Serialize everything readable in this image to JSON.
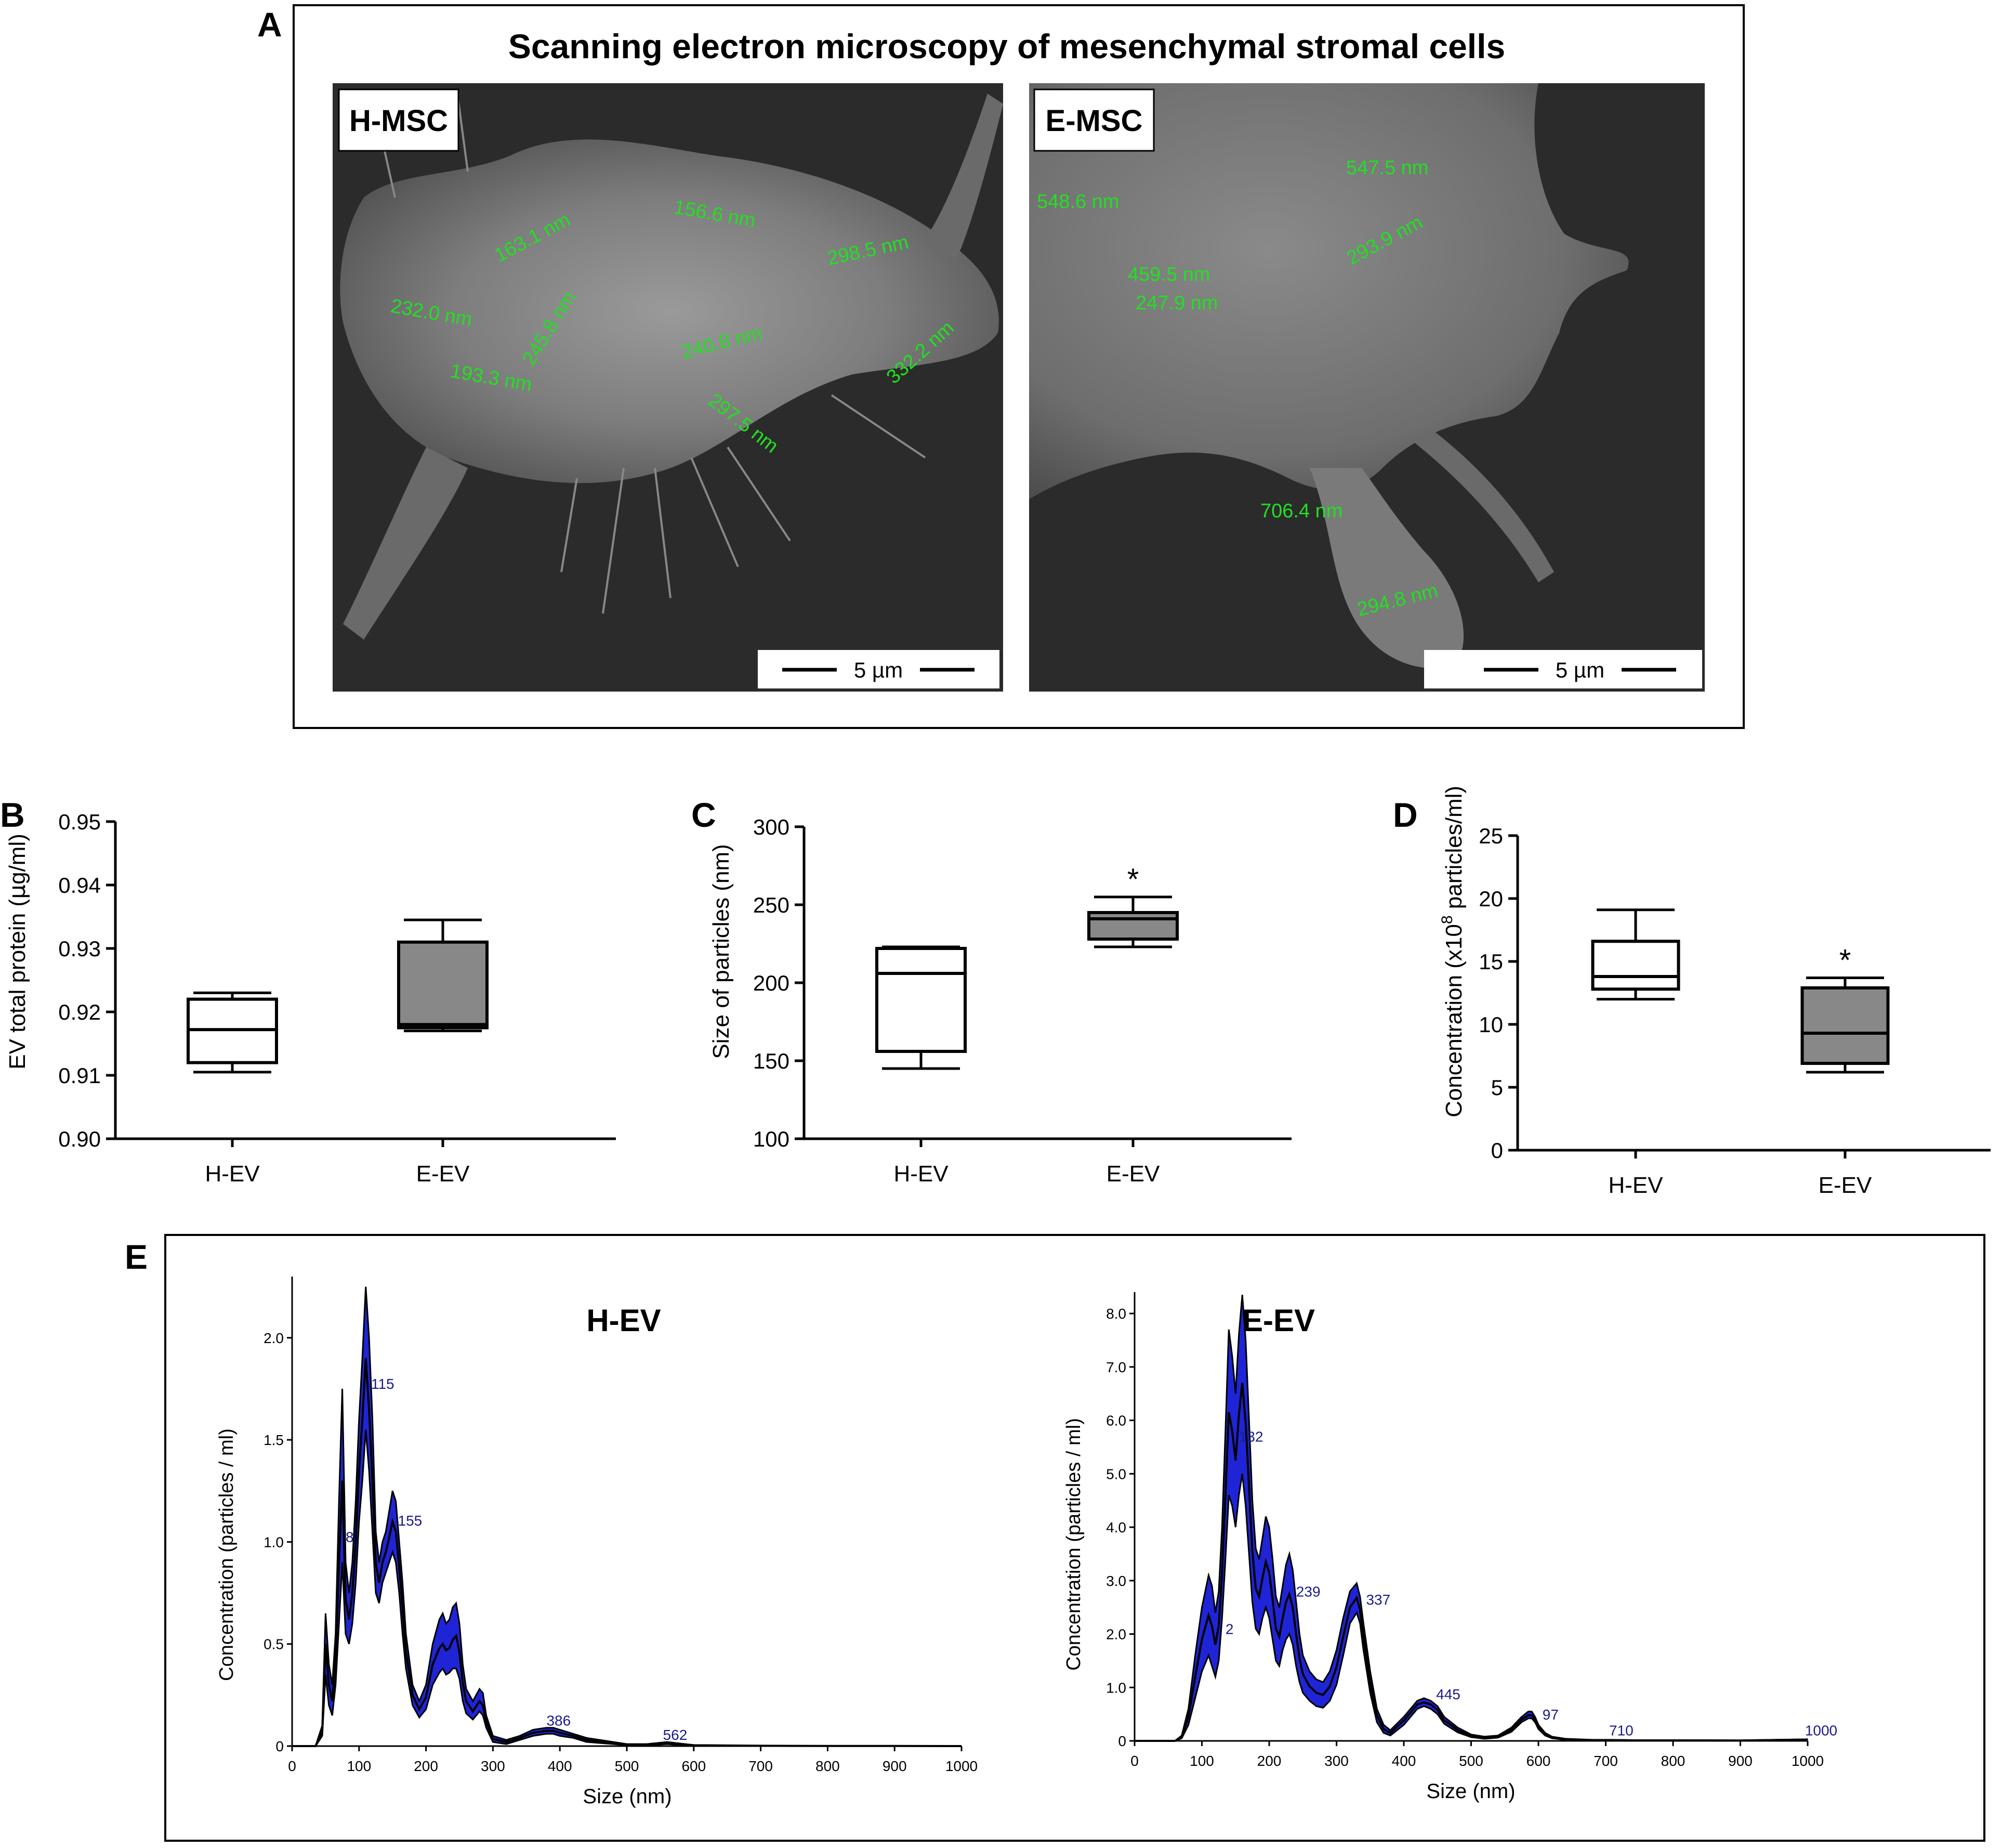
{
  "panel_letters": {
    "a": "A",
    "b": "B",
    "c": "C",
    "d": "D",
    "e": "E"
  },
  "panel_a": {
    "title": "Scanning electron microscopy of mesenchymal stromal cells",
    "left": {
      "label": "H-MSC",
      "scale_bar": "5 µm",
      "annotations": [
        "163.1 nm",
        "156.6 nm",
        "298.5 nm",
        "232.0 nm",
        "245.8 nm",
        "240.8 nm",
        "332.2 nm",
        "193.3 nm",
        "297.5 nm"
      ]
    },
    "right": {
      "label": "E-MSC",
      "scale_bar": "5 µm",
      "annotations": [
        "548.6 nm",
        "547.5 nm",
        "293.9 nm",
        "459.5 nm",
        "247.9 nm",
        "706.4 nm",
        "294.8 nm"
      ]
    },
    "colors": {
      "annotation": "#22e022",
      "background": "#2a2a2a"
    }
  },
  "chart_data": [
    {
      "panel": "B",
      "type": "box",
      "ylabel_prefix": "EV total protein (",
      "ylabel_unit_mu": "µ",
      "ylabel_suffix": "g/ml)",
      "categories": [
        "H-EV",
        "E-EV"
      ],
      "ylim": [
        0.9,
        0.95
      ],
      "yticks": [
        "0.90",
        "0.91",
        "0.92",
        "0.93",
        "0.94",
        "0.95"
      ],
      "boxes": [
        {
          "min": 0.9105,
          "q1": 0.912,
          "median": 0.9172,
          "q3": 0.922,
          "max": 0.923,
          "fill": "#ffffff"
        },
        {
          "min": 0.917,
          "q1": 0.9175,
          "median": 0.918,
          "q3": 0.931,
          "max": 0.9345,
          "fill": "#888888"
        }
      ],
      "significance": [
        "",
        ""
      ]
    },
    {
      "panel": "C",
      "type": "box",
      "ylabel": "Size of particles (nm)",
      "categories": [
        "H-EV",
        "E-EV"
      ],
      "ylim": [
        100,
        300
      ],
      "yticks": [
        "100",
        "150",
        "200",
        "250",
        "300"
      ],
      "boxes": [
        {
          "min": 145,
          "q1": 156,
          "median": 206,
          "q3": 222,
          "max": 223,
          "fill": "#ffffff"
        },
        {
          "min": 223,
          "q1": 228,
          "median": 241,
          "q3": 245,
          "max": 255,
          "fill": "#888888"
        }
      ],
      "significance": [
        "",
        "*"
      ]
    },
    {
      "panel": "D",
      "type": "box",
      "ylabel_prefix": "Concentration (x10",
      "ylabel_sup": "8",
      "ylabel_suffix": " particles/ml)",
      "categories": [
        "H-EV",
        "E-EV"
      ],
      "ylim": [
        0,
        25
      ],
      "yticks": [
        "0",
        "5",
        "10",
        "15",
        "20",
        "25"
      ],
      "boxes": [
        {
          "min": 12.0,
          "q1": 12.8,
          "median": 13.8,
          "q3": 16.6,
          "max": 19.1,
          "fill": "#ffffff"
        },
        {
          "min": 6.2,
          "q1": 6.9,
          "median": 9.3,
          "q3": 12.9,
          "max": 13.7,
          "fill": "#888888"
        }
      ],
      "significance": [
        "",
        "*"
      ]
    },
    {
      "panel": "E-left",
      "type": "area",
      "title": "H-EV",
      "xlabel": "Size (nm)",
      "ylabel": "Concentration (particles / ml)",
      "xlim": [
        0,
        1000
      ],
      "ylim": [
        0,
        2.3
      ],
      "xticks": [
        "0",
        "100",
        "200",
        "300",
        "400",
        "500",
        "600",
        "700",
        "800",
        "900",
        "1000"
      ],
      "yticks": [
        "0",
        "0.5",
        "1.0",
        "1.5",
        "2.0"
      ],
      "ytick_values": [
        0,
        0.5,
        1.0,
        1.5,
        2.0
      ],
      "x": [
        0,
        35,
        45,
        50,
        55,
        60,
        65,
        70,
        75,
        80,
        85,
        90,
        95,
        100,
        105,
        110,
        115,
        120,
        125,
        130,
        135,
        140,
        145,
        150,
        155,
        160,
        165,
        170,
        180,
        190,
        200,
        210,
        220,
        225,
        230,
        235,
        240,
        245,
        250,
        255,
        260,
        270,
        280,
        285,
        290,
        300,
        320,
        340,
        360,
        380,
        390,
        400,
        420,
        440,
        460,
        480,
        500,
        530,
        560,
        600,
        700,
        800,
        900,
        1000
      ],
      "upper": [
        0,
        0,
        0.1,
        0.65,
        0.4,
        0.3,
        0.55,
        1.2,
        1.75,
        0.9,
        0.75,
        0.9,
        1.2,
        1.6,
        1.9,
        2.25,
        2.0,
        1.6,
        1.05,
        0.9,
        1.0,
        1.05,
        1.15,
        1.25,
        1.2,
        1.0,
        0.8,
        0.55,
        0.3,
        0.22,
        0.3,
        0.5,
        0.62,
        0.65,
        0.6,
        0.62,
        0.68,
        0.7,
        0.6,
        0.4,
        0.28,
        0.22,
        0.28,
        0.26,
        0.15,
        0.05,
        0.03,
        0.05,
        0.08,
        0.09,
        0.09,
        0.08,
        0.06,
        0.04,
        0.03,
        0.02,
        0.01,
        0.01,
        0.02,
        0.005,
        0.002,
        0.001,
        0.001,
        0
      ],
      "lower": [
        0,
        0,
        0.05,
        0.35,
        0.2,
        0.15,
        0.3,
        0.6,
        0.9,
        0.55,
        0.5,
        0.6,
        0.8,
        1.1,
        1.3,
        1.55,
        1.35,
        1.05,
        0.75,
        0.7,
        0.8,
        0.85,
        0.9,
        0.95,
        0.9,
        0.75,
        0.55,
        0.38,
        0.2,
        0.14,
        0.18,
        0.3,
        0.36,
        0.38,
        0.35,
        0.36,
        0.38,
        0.38,
        0.33,
        0.22,
        0.16,
        0.13,
        0.17,
        0.15,
        0.09,
        0.02,
        0.01,
        0.03,
        0.05,
        0.06,
        0.06,
        0.05,
        0.04,
        0.02,
        0.015,
        0.01,
        0.005,
        0.004,
        0.01,
        0.002,
        0.001,
        0,
        0,
        0
      ],
      "mean": [
        0,
        0,
        0.07,
        0.5,
        0.3,
        0.22,
        0.42,
        0.9,
        1.3,
        0.72,
        0.62,
        0.75,
        1.0,
        1.35,
        1.6,
        1.9,
        1.65,
        1.3,
        0.9,
        0.8,
        0.9,
        0.95,
        1.02,
        1.1,
        1.05,
        0.88,
        0.68,
        0.46,
        0.25,
        0.18,
        0.24,
        0.4,
        0.48,
        0.5,
        0.47,
        0.48,
        0.52,
        0.54,
        0.46,
        0.31,
        0.22,
        0.17,
        0.22,
        0.2,
        0.12,
        0.035,
        0.02,
        0.04,
        0.065,
        0.075,
        0.075,
        0.065,
        0.05,
        0.03,
        0.022,
        0.015,
        0.008,
        0.007,
        0.015,
        0.004,
        0.0015,
        0.0005,
        0.0005,
        0
      ],
      "peak_labels": [
        {
          "text": "115",
          "x": 118,
          "y": 1.75
        },
        {
          "text": "8",
          "x": 80,
          "y": 1.0
        },
        {
          "text": "155",
          "x": 158,
          "y": 1.08
        },
        {
          "text": "386",
          "x": 380,
          "y": 0.1
        },
        {
          "text": "562",
          "x": 554,
          "y": 0.03
        }
      ],
      "colors": {
        "fill": "#1f25d6",
        "line": "#000000",
        "label": "#1a1a8c"
      }
    },
    {
      "panel": "E-right",
      "type": "area",
      "title": "E-EV",
      "xlabel": "Size (nm)",
      "ylabel": "Concentration (particles / ml)",
      "xlim": [
        0,
        1000
      ],
      "ylim": [
        0,
        8.4
      ],
      "xticks": [
        "0",
        "100",
        "200",
        "300",
        "400",
        "500",
        "600",
        "700",
        "800",
        "900",
        "1000"
      ],
      "yticks": [
        "0",
        "1.0",
        "2.0",
        "3.0",
        "4.0",
        "5.0",
        "6.0",
        "7.0",
        "8.0"
      ],
      "ytick_values": [
        0,
        1,
        2,
        3,
        4,
        5,
        6,
        7,
        8
      ],
      "x": [
        0,
        60,
        70,
        80,
        90,
        100,
        110,
        115,
        120,
        125,
        130,
        135,
        140,
        145,
        150,
        155,
        160,
        165,
        170,
        175,
        180,
        185,
        190,
        195,
        200,
        205,
        210,
        215,
        220,
        225,
        230,
        235,
        240,
        245,
        250,
        260,
        270,
        280,
        290,
        300,
        310,
        320,
        330,
        335,
        340,
        350,
        360,
        370,
        380,
        400,
        420,
        430,
        440,
        450,
        460,
        470,
        480,
        500,
        520,
        540,
        560,
        575,
        585,
        590,
        595,
        600,
        610,
        620,
        640,
        680,
        710,
        740,
        800,
        900,
        1000
      ],
      "upper": [
        0,
        0,
        0.1,
        0.6,
        1.6,
        2.5,
        3.1,
        2.9,
        2.4,
        2.8,
        4.0,
        5.8,
        7.7,
        7.2,
        6.5,
        7.6,
        8.35,
        7.5,
        6.0,
        4.5,
        3.6,
        3.4,
        3.8,
        4.2,
        4.0,
        3.4,
        2.7,
        2.5,
        2.9,
        3.3,
        3.5,
        3.2,
        2.6,
        2.0,
        1.6,
        1.3,
        1.15,
        1.1,
        1.3,
        1.7,
        2.3,
        2.8,
        2.95,
        2.7,
        2.2,
        1.3,
        0.6,
        0.3,
        0.2,
        0.45,
        0.75,
        0.8,
        0.75,
        0.65,
        0.45,
        0.35,
        0.25,
        0.12,
        0.08,
        0.1,
        0.25,
        0.45,
        0.55,
        0.55,
        0.45,
        0.3,
        0.15,
        0.08,
        0.04,
        0.02,
        0.02,
        0.015,
        0.015,
        0.01,
        0.03
      ],
      "lower": [
        0,
        0,
        0.05,
        0.3,
        0.8,
        1.3,
        1.6,
        1.4,
        1.2,
        1.5,
        2.3,
        3.4,
        4.6,
        4.4,
        4.0,
        4.6,
        5.0,
        4.4,
        3.5,
        2.6,
        2.1,
        2.0,
        2.3,
        2.5,
        2.3,
        1.9,
        1.5,
        1.4,
        1.7,
        1.9,
        2.0,
        1.8,
        1.4,
        1.1,
        0.9,
        0.75,
        0.65,
        0.62,
        0.75,
        1.05,
        1.6,
        2.2,
        2.4,
        2.2,
        1.7,
        0.9,
        0.35,
        0.15,
        0.1,
        0.3,
        0.6,
        0.65,
        0.6,
        0.5,
        0.32,
        0.24,
        0.16,
        0.07,
        0.04,
        0.06,
        0.17,
        0.35,
        0.42,
        0.42,
        0.35,
        0.22,
        0.1,
        0.05,
        0.02,
        0.01,
        0.01,
        0.005,
        0.005,
        0.005,
        0.02
      ],
      "mean": [
        0,
        0,
        0.07,
        0.45,
        1.2,
        1.9,
        2.35,
        2.15,
        1.8,
        2.15,
        3.15,
        4.6,
        6.15,
        5.8,
        5.25,
        6.1,
        6.7,
        5.95,
        4.75,
        3.55,
        2.85,
        2.7,
        3.05,
        3.35,
        3.15,
        2.65,
        2.1,
        1.95,
        2.3,
        2.6,
        2.75,
        2.5,
        2.0,
        1.55,
        1.25,
        1.02,
        0.9,
        0.86,
        1.02,
        1.38,
        1.95,
        2.5,
        2.68,
        2.45,
        1.95,
        1.1,
        0.48,
        0.22,
        0.15,
        0.38,
        0.68,
        0.72,
        0.68,
        0.58,
        0.38,
        0.3,
        0.2,
        0.095,
        0.06,
        0.08,
        0.21,
        0.4,
        0.48,
        0.48,
        0.4,
        0.26,
        0.125,
        0.065,
        0.03,
        0.015,
        0.015,
        0.01,
        0.01,
        0.008,
        0.025
      ],
      "peak_labels": [
        {
          "text": "2",
          "x": 135,
          "y": 2.0
        },
        {
          "text": "132",
          "x": 155,
          "y": 5.6
        },
        {
          "text": "239",
          "x": 240,
          "y": 2.7
        },
        {
          "text": "337",
          "x": 344,
          "y": 2.55
        },
        {
          "text": "445",
          "x": 448,
          "y": 0.78
        },
        {
          "text": "97",
          "x": 606,
          "y": 0.4
        },
        {
          "text": "710",
          "x": 705,
          "y": 0.1
        },
        {
          "text": "1000",
          "x": 996,
          "y": 0.1
        }
      ],
      "colors": {
        "fill": "#1f25d6",
        "line": "#000000",
        "label": "#1a1a8c"
      }
    }
  ]
}
